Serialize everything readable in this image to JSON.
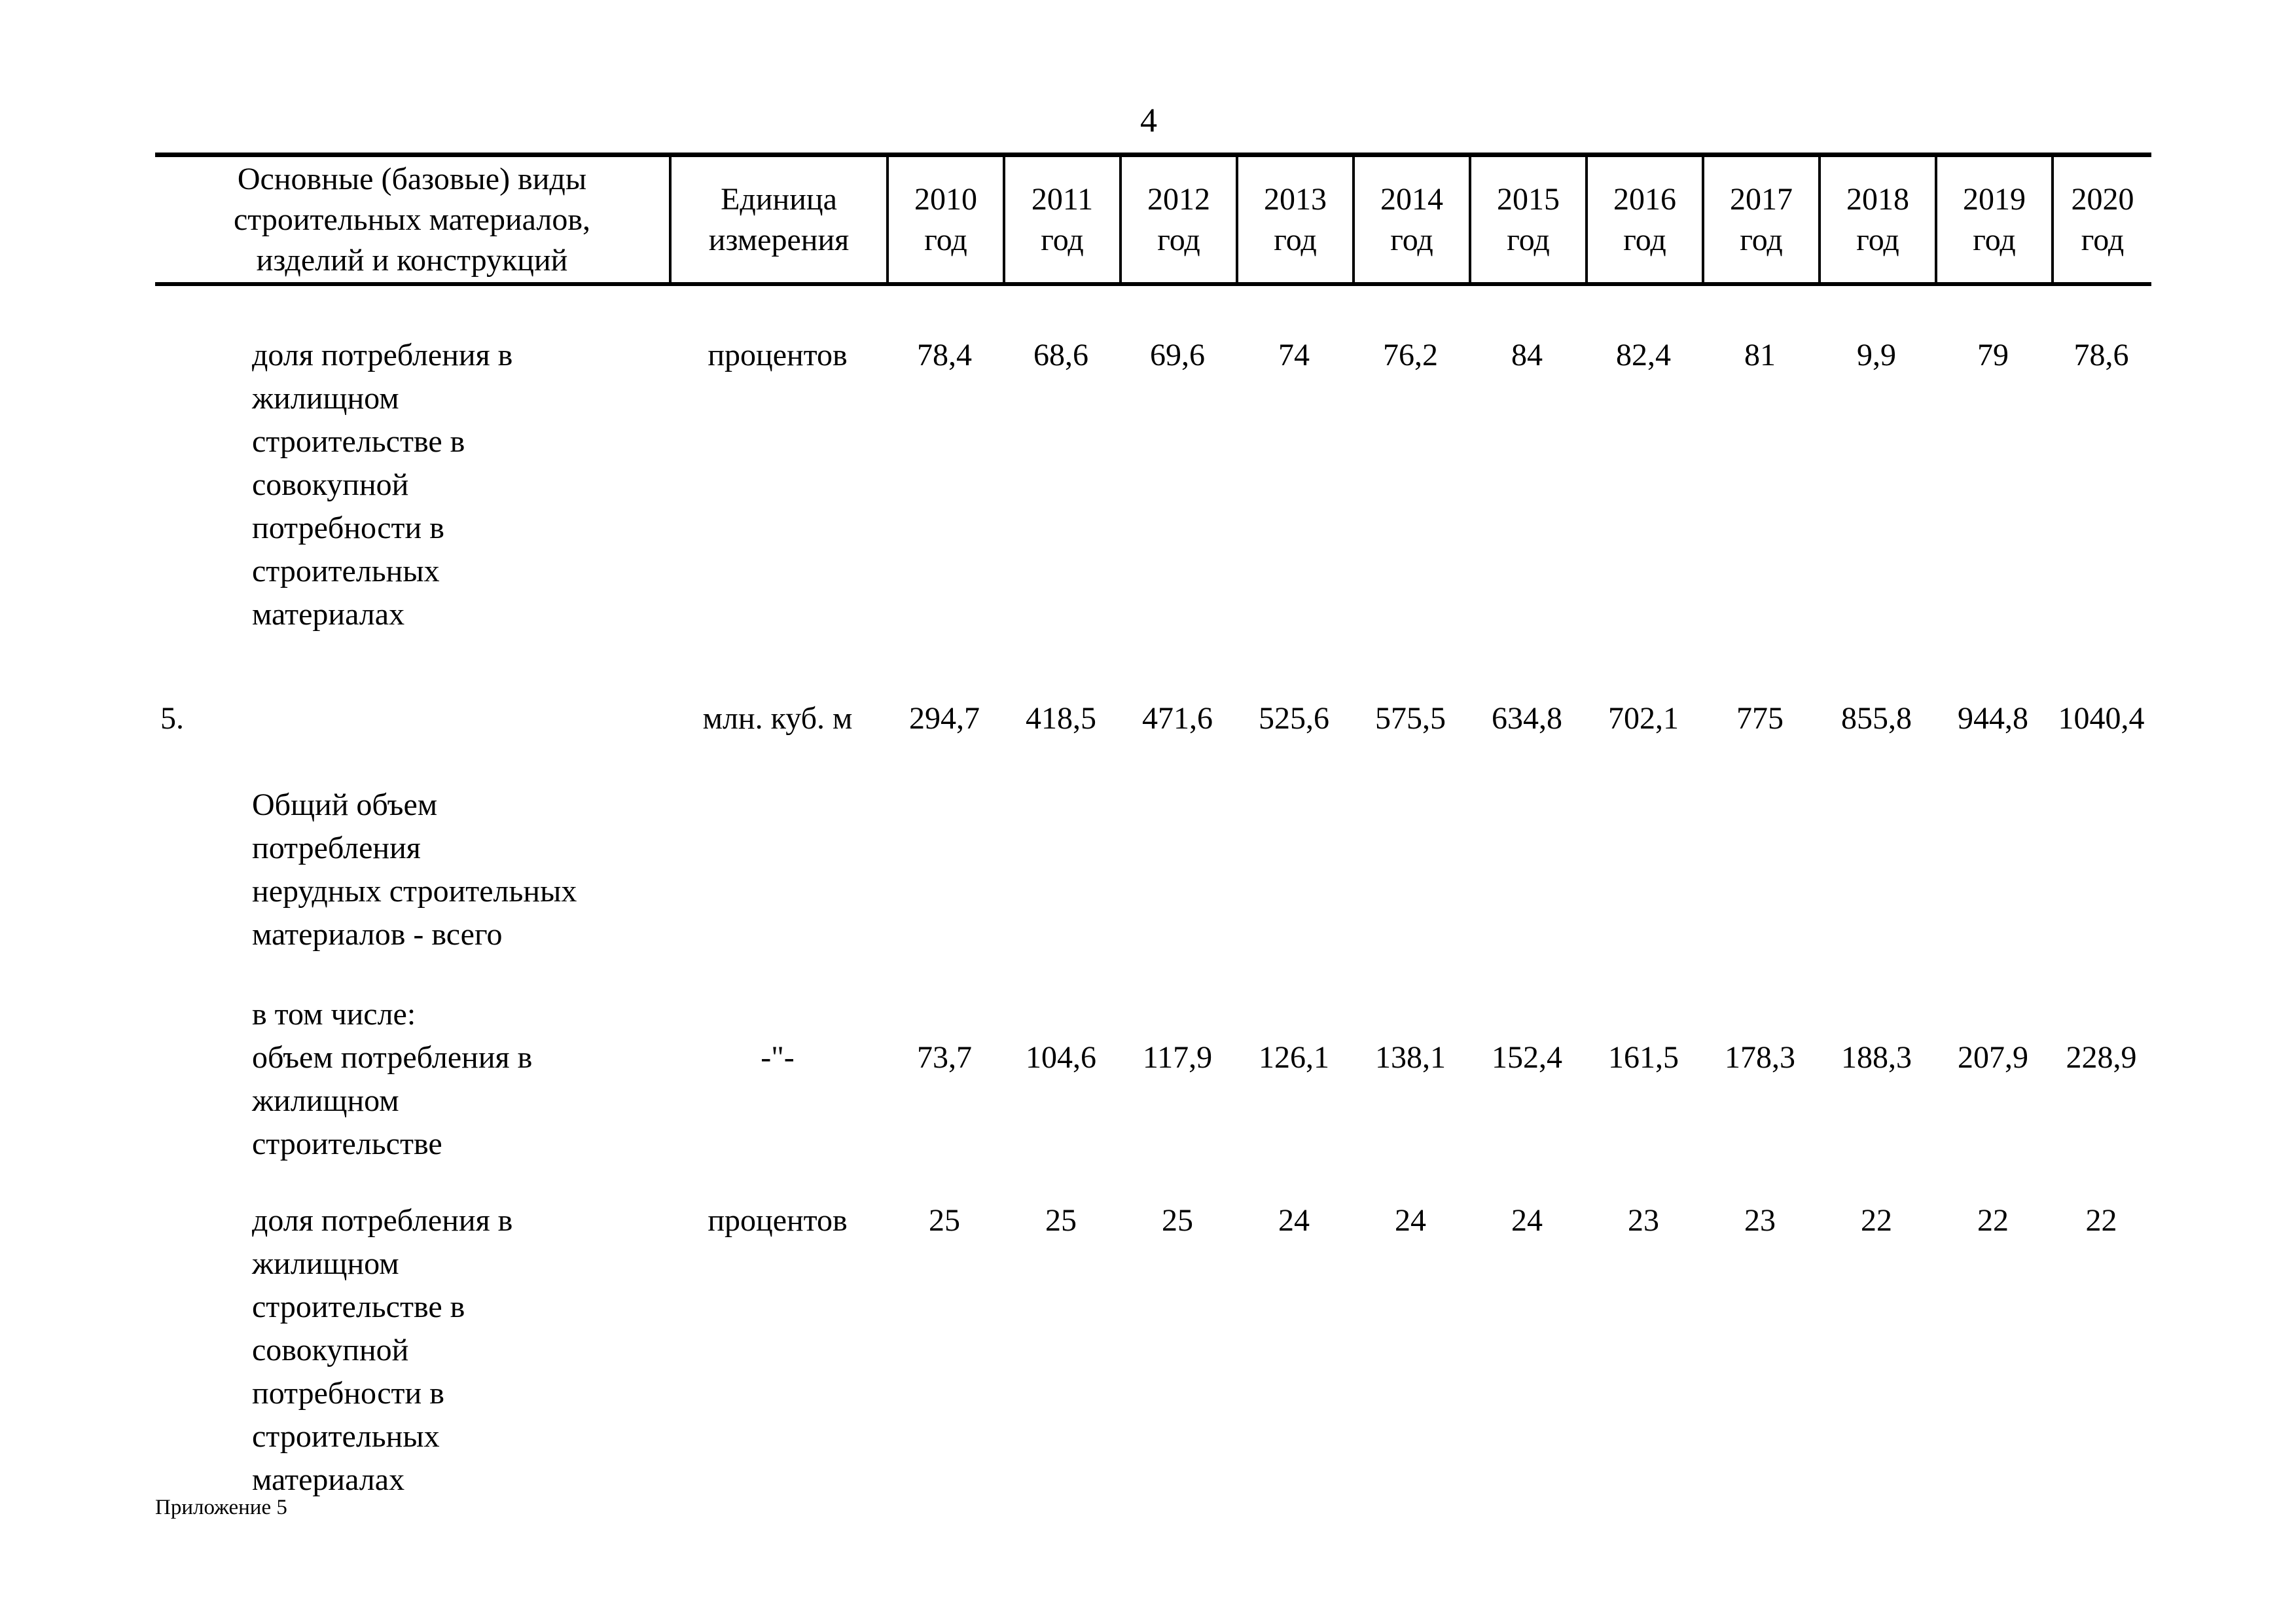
{
  "page": {
    "number": "4",
    "footer": "Приложение 5"
  },
  "table": {
    "header": {
      "materials": "Основные (базовые) виды\nстроительных материалов,\nизделий и конструкций",
      "unit": "Единица\nизмерения",
      "years": [
        "2010\nгод",
        "2011\nгод",
        "2012\nгод",
        "2013\nгод",
        "2014\nгод",
        "2015\nгод",
        "2016\nгод",
        "2017\nгод",
        "2018\nгод",
        "2019\nгод",
        "2020\nгод"
      ]
    },
    "rows": [
      {
        "num": "",
        "name": "доля потребления в\nжилищном\nстроительстве в\nсовокупной\nпотребности в\nстроительных\nматериалах",
        "unit": "процентов",
        "values": [
          "78,4",
          "68,6",
          "69,6",
          "74",
          "76,2",
          "84",
          "82,4",
          "81",
          "9,9",
          "79",
          "78,6"
        ]
      },
      {
        "num": "5.",
        "name": "Общий объем\nпотребления\nнерудных строительных\nматериалов - всего",
        "unit": "млн. куб. м",
        "values": [
          "294,7",
          "418,5",
          "471,6",
          "525,6",
          "575,5",
          "634,8",
          "702,1",
          "775",
          "855,8",
          "944,8",
          "1040,4"
        ]
      },
      {
        "num": "",
        "name": "в том числе:\nобъем потребления в\nжилищном\nстроительстве",
        "unit": "-\"-",
        "values": [
          "73,7",
          "104,6",
          "117,9",
          "126,1",
          "138,1",
          "152,4",
          "161,5",
          "178,3",
          "188,3",
          "207,9",
          "228,9"
        ]
      },
      {
        "num": "",
        "name": "доля потребления в\nжилищном\nстроительстве в\nсовокупной\nпотребности в\nстроительных\nматериалах",
        "unit": "процентов",
        "values": [
          "25",
          "25",
          "25",
          "24",
          "24",
          "24",
          "23",
          "23",
          "22",
          "22",
          "22"
        ]
      }
    ]
  }
}
